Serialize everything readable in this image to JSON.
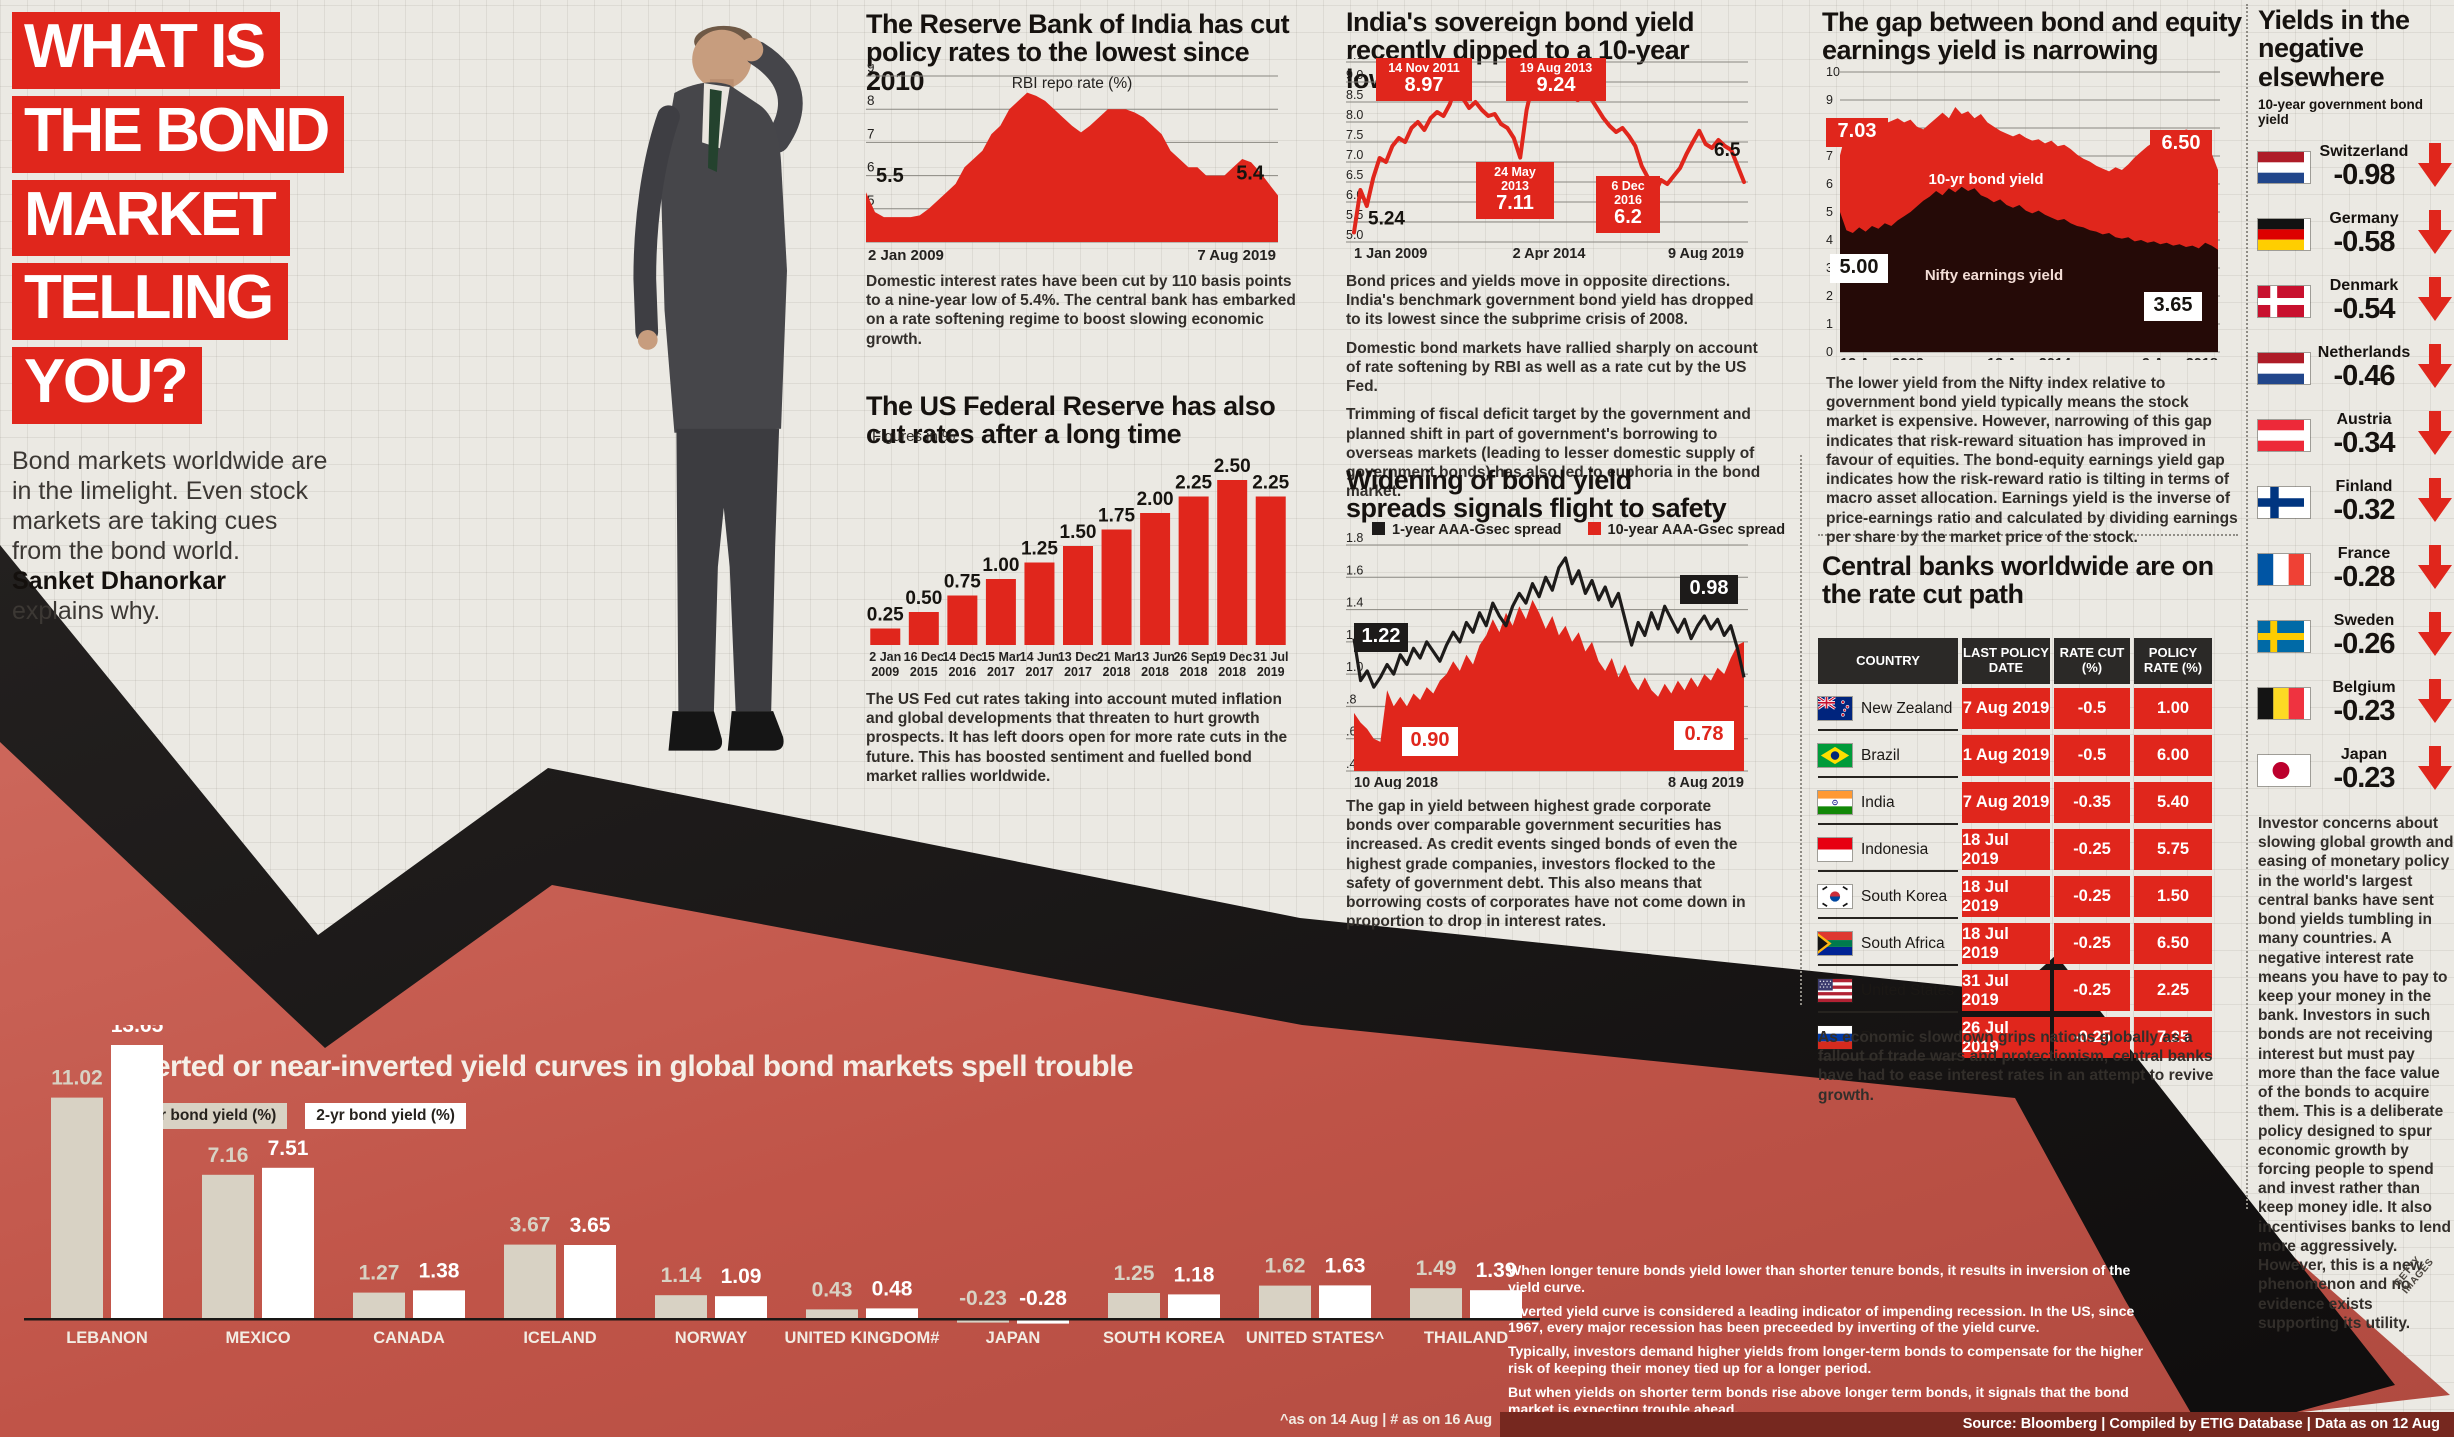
{
  "page": {
    "source_bar": "Source: Bloomberg   |   Compiled by ETIG Database   |   Data as on 12 Aug",
    "getty_credit": "GETTY IMAGES"
  },
  "masthead": {
    "title_lines": [
      "WHAT IS",
      "THE BOND",
      "MARKET",
      "TELLING",
      "YOU?"
    ],
    "intro": "Bond markets worldwide are in the limelight. Even stock markets are taking cues from the bond world.",
    "author": "Sanket Dhanorkar",
    "author_suffix": "explains why."
  },
  "sections": {
    "rbi": {
      "title": "The Reserve Bank of India has cut policy rates to the lowest since 2010",
      "caption": "Domestic interest rates have been cut by 110 basis points to a nine-year low of 5.4%. The central bank has embarked on a rate softening regime to boost slowing economic growth."
    },
    "usfed": {
      "title": "The US Federal Reserve has also cut rates after a long time",
      "unit_note": "Figures in %",
      "caption": "The US Fed cut rates taking into account muted inflation and global developments that threaten to hurt growth prospects. It has left doors open for more rate cuts in the future. This has boosted sentiment and fuelled bond market rallies worldwide."
    },
    "india_yield": {
      "title": "India's sovereign bond yield recently dipped to a 10-year low",
      "captions": [
        "Bond prices and yields move in opposite directions. India's benchmark government bond yield has dropped to its lowest since the subprime crisis of 2008.",
        "Domestic bond markets have rallied sharply on account of rate softening by RBI as well as a rate cut by the US Fed.",
        "Trimming of fiscal deficit target by the government and planned shift in part of government's borrowing to overseas markets (leading to lesser domestic supply of government bonds) has also led to euphoria in the bond market."
      ]
    },
    "spreads": {
      "title": "Widening of bond yield spreads signals flight to safety",
      "caption": "The gap in yield between highest grade corporate bonds over comparable government securities has increased. As credit events singed bonds of even the highest grade companies, investors flocked to the safety of government debt. This also means that borrowing costs of corporates have not come down in proportion to drop in interest rates."
    },
    "gap": {
      "title": "The gap between bond and equity earnings yield is narrowing",
      "caption": "The lower yield from the Nifty index relative to government bond yield typically means the stock market is expensive. However, narrowing of this gap indicates that risk-reward situation has improved in favour of equities. The bond-equity earnings yield gap indicates how the risk-reward ratio is tilting in terms of macro asset allocation. Earnings yield is the inverse of price-earnings ratio and calculated by dividing earnings per share by the market price of the stock."
    },
    "central_banks": {
      "title": "Central banks worldwide are on the rate cut path",
      "columns": [
        "COUNTRY",
        "LAST POLICY DATE",
        "RATE CUT (%)",
        "POLICY RATE (%)"
      ],
      "rows": [
        {
          "country": "New Zealand",
          "flag": "new_zealand",
          "date": "7 Aug 2019",
          "cut": "-0.5",
          "rate": "1.00"
        },
        {
          "country": "Brazil",
          "flag": "brazil",
          "date": "1 Aug 2019",
          "cut": "-0.5",
          "rate": "6.00"
        },
        {
          "country": "India",
          "flag": "india",
          "date": "7 Aug 2019",
          "cut": "-0.35",
          "rate": "5.40"
        },
        {
          "country": "Indonesia",
          "flag": "indonesia",
          "date": "18 Jul 2019",
          "cut": "-0.25",
          "rate": "5.75"
        },
        {
          "country": "South Korea",
          "flag": "south_korea",
          "date": "18 Jul 2019",
          "cut": "-0.25",
          "rate": "1.50"
        },
        {
          "country": "South Africa",
          "flag": "south_africa",
          "date": "18 Jul 2019",
          "cut": "-0.25",
          "rate": "6.50"
        },
        {
          "country": "United States",
          "flag": "united_states",
          "date": "31 Jul 2019",
          "cut": "-0.25",
          "rate": "2.25"
        },
        {
          "country": "Russia",
          "flag": "russia",
          "date": "26 Jul 2019",
          "cut": "-0.25",
          "rate": "7.25"
        }
      ],
      "caption": "As economic slowdown grips nations globally as a fallout of trade wars and protectionism, central banks have had to ease interest rates in an attempt to revive growth."
    },
    "negative_yields": {
      "title": "Yields in the negative elsewhere",
      "subtitle": "10-year government bond yield",
      "items": [
        {
          "country": "Switzerland",
          "value": "-0.98",
          "flag": "netherlands"
        },
        {
          "country": "Germany",
          "value": "-0.58",
          "flag": "germany"
        },
        {
          "country": "Denmark",
          "value": "-0.54",
          "flag": "denmark"
        },
        {
          "country": "Netherlands",
          "value": "-0.46",
          "flag": "netherlands"
        },
        {
          "country": "Austria",
          "value": "-0.34",
          "flag": "austria"
        },
        {
          "country": "Finland",
          "value": "-0.32",
          "flag": "finland"
        },
        {
          "country": "France",
          "value": "-0.28",
          "flag": "france"
        },
        {
          "country": "Sweden",
          "value": "-0.26",
          "flag": "sweden"
        },
        {
          "country": "Belgium",
          "value": "-0.23",
          "flag": "belgium"
        },
        {
          "country": "Japan",
          "value": "-0.23",
          "flag": "japan"
        }
      ],
      "caption": "Investor concerns about slowing global growth and easing of monetary policy in the world's largest central banks have sent bond yields tumbling in many countries. A negative interest rate means you have to pay to keep your money in the bank. Investors in such bonds are not receiving interest but must pay more than the face value of the bonds to acquire them. This is a deliberate policy designed to spur economic growth by forcing people to spend and invest rather than keep money idle. It also incentivises banks to lend more aggressively. However, this is a new phenomenon and no evidence exists supporting its utility."
    },
    "inverted": {
      "title": "Inverted or near-inverted yield curves in global bond markets spell trouble",
      "notes": [
        "When longer tenure bonds yield lower than shorter tenure bonds, it results in inversion of the yield curve.",
        "Inverted yield curve is considered a leading indicator of impending recession. In the US, since 1967, every major recession has been preceeded by inverting of the yield curve.",
        "Typically, investors demand higher yields from longer-term bonds to compensate for the higher risk of keeping their money tied up for a longer period.",
        "But when yields on shorter term bonds rise above longer term bonds, it signals that the bond market is expecting trouble ahead."
      ],
      "footnote": "^as on 14 Aug   |   # as on 16 Aug"
    }
  },
  "chart_data": [
    {
      "id": "rbi_repo",
      "type": "area",
      "title": "RBI repo rate (%)",
      "color": "#e0261c",
      "ylim": [
        4,
        9
      ],
      "yticks": [
        9,
        8,
        7,
        6,
        5,
        4
      ],
      "x_labels": [
        "2 Jan 2009",
        "7 Aug 2019"
      ],
      "start_label": "5.5",
      "end_label": "5.4",
      "values": [
        5.5,
        4.9,
        4.75,
        4.75,
        4.75,
        4.75,
        4.8,
        5.0,
        5.25,
        5.5,
        5.75,
        6.25,
        6.5,
        6.75,
        7.25,
        7.5,
        8.0,
        8.25,
        8.5,
        8.4,
        8.25,
        8.0,
        7.75,
        7.5,
        7.3,
        7.5,
        7.75,
        8.0,
        8.0,
        8.0,
        7.9,
        7.75,
        7.5,
        7.25,
        6.75,
        6.5,
        6.25,
        6.25,
        6.0,
        6.0,
        6.0,
        6.25,
        6.5,
        6.4,
        6.1,
        5.75,
        5.4
      ]
    },
    {
      "id": "us_fed",
      "type": "bar",
      "title": "Figures in %",
      "color": "#e0261c",
      "categories": [
        "2 Jan 2009",
        "16 Dec 2015",
        "14 Dec 2016",
        "15 Mar 2017",
        "14 Jun 2017",
        "13 Dec 2017",
        "21 Mar 2018",
        "13 Jun 2018",
        "26 Sep 2018",
        "19 Dec 2018",
        "31 Jul 2019"
      ],
      "values": [
        0.25,
        0.5,
        0.75,
        1.0,
        1.25,
        1.5,
        1.75,
        2.0,
        2.25,
        2.5,
        2.25
      ]
    },
    {
      "id": "india_10y",
      "type": "line",
      "color": "#e0261c",
      "ylim": [
        5.0,
        9.5
      ],
      "yticks": [
        9.5,
        9.0,
        8.5,
        8.0,
        7.5,
        7.0,
        6.5,
        6.0,
        5.5,
        5.0
      ],
      "x_labels": [
        "1 Jan 2009",
        "2 Apr 2014",
        "9 Aug 2019"
      ],
      "start_label": "5.24",
      "end_label": "6.5",
      "callouts": [
        {
          "date": "14 Nov 2011",
          "value": "8.97"
        },
        {
          "date": "19 Aug 2013",
          "value": "9.24"
        },
        {
          "date": "24 May 2013",
          "value": "7.11"
        },
        {
          "date": "6 Dec 2016",
          "value": "6.2"
        }
      ],
      "values": [
        5.24,
        6.3,
        5.9,
        6.6,
        7.1,
        7.0,
        7.4,
        7.6,
        7.5,
        7.85,
        8.0,
        7.8,
        8.1,
        8.25,
        8.15,
        8.45,
        8.97,
        8.6,
        8.35,
        8.5,
        8.3,
        8.15,
        8.2,
        7.95,
        7.85,
        7.6,
        7.11,
        8.3,
        9.0,
        9.24,
        8.7,
        8.95,
        8.85,
        8.9,
        8.65,
        8.55,
        8.8,
        8.6,
        8.35,
        8.1,
        7.9,
        7.75,
        7.85,
        7.65,
        7.4,
        6.9,
        6.6,
        6.2,
        6.55,
        6.45,
        6.65,
        6.85,
        7.2,
        7.5,
        7.78,
        7.45,
        7.35,
        7.55,
        7.4,
        7.3,
        6.9,
        6.5
      ]
    },
    {
      "id": "spreads",
      "type": "line",
      "legend": [
        "1-year AAA-Gsec spread",
        "10-year AAA-Gsec spread"
      ],
      "colors": [
        "#1d1b1a",
        "#e0261c"
      ],
      "ylim": [
        0.4,
        1.8
      ],
      "yticks": [
        1.8,
        1.6,
        1.4,
        1.2,
        1.0,
        0.8,
        0.6,
        0.4
      ],
      "x_labels": [
        "10 Aug 2018",
        "8 Aug 2019"
      ],
      "callouts": [
        "1.22",
        "0.98",
        "0.90",
        "0.78"
      ],
      "series": [
        {
          "name": "1-year AAA-Gsec spread",
          "values": [
            1.22,
            0.96,
            1.02,
            0.92,
            0.98,
            1.06,
            1.0,
            1.12,
            1.06,
            1.16,
            1.1,
            1.2,
            1.14,
            1.08,
            1.18,
            1.26,
            1.2,
            1.32,
            1.26,
            1.38,
            1.3,
            1.44,
            1.36,
            1.3,
            1.42,
            1.5,
            1.44,
            1.56,
            1.48,
            1.6,
            1.52,
            1.66,
            1.72,
            1.56,
            1.64,
            1.5,
            1.58,
            1.46,
            1.54,
            1.42,
            1.5,
            1.34,
            1.18,
            1.32,
            1.24,
            1.38,
            1.28,
            1.42,
            1.34,
            1.26,
            1.34,
            1.22,
            1.3,
            1.36,
            1.28,
            1.34,
            1.24,
            1.3,
            1.16,
            0.98
          ]
        },
        {
          "name": "10-year AAA-Gsec spread",
          "values": [
            0.76,
            0.7,
            0.66,
            0.6,
            0.58,
            0.9,
            0.8,
            0.86,
            0.8,
            0.88,
            0.84,
            0.92,
            0.88,
            0.96,
            1.0,
            1.08,
            1.02,
            1.12,
            1.06,
            1.18,
            1.24,
            1.34,
            1.26,
            1.38,
            1.3,
            1.42,
            1.34,
            1.46,
            1.38,
            1.28,
            1.36,
            1.24,
            1.3,
            1.2,
            1.26,
            1.14,
            1.2,
            1.08,
            1.02,
            1.1,
            0.98,
            1.06,
            0.96,
            0.9,
            0.98,
            0.9,
            0.86,
            0.94,
            0.88,
            0.96,
            0.9,
            0.98,
            0.92,
            1.0,
            0.96,
            1.04,
            1.0,
            1.1,
            1.18,
            1.2
          ]
        }
      ]
    },
    {
      "id": "gap",
      "type": "area",
      "ylim": [
        0,
        10
      ],
      "yticks": [
        10,
        9,
        8,
        7,
        6,
        5,
        4,
        3,
        2,
        1,
        0
      ],
      "x_labels": [
        "12 Aug 2009",
        "12 Aug 2014",
        "9 Aug 2018"
      ],
      "callouts": [
        "7.03",
        "6.50",
        "5.00",
        "3.65"
      ],
      "series": [
        {
          "name": "10-yr bond yield",
          "color": "#e0261c",
          "values": [
            7.03,
            7.9,
            8.05,
            7.85,
            8.0,
            8.2,
            8.35,
            8.15,
            8.25,
            8.35,
            8.2,
            8.3,
            8.05,
            7.95,
            8.15,
            8.35,
            8.55,
            8.35,
            8.75,
            8.5,
            8.6,
            8.35,
            8.5,
            8.2,
            8.05,
            7.9,
            7.8,
            7.7,
            7.8,
            7.65,
            7.55,
            7.6,
            7.45,
            7.55,
            7.35,
            7.4,
            7.25,
            7.05,
            6.9,
            6.8,
            6.65,
            6.55,
            6.45,
            6.6,
            6.5,
            6.7,
            6.95,
            7.15,
            7.35,
            7.5,
            7.6,
            7.7,
            7.85,
            7.75,
            7.95,
            7.85,
            7.7,
            7.45,
            7.1,
            6.5
          ]
        },
        {
          "name": "Nifty earnings yield",
          "color": "#250a07",
          "values": [
            5.0,
            4.35,
            4.25,
            4.45,
            4.3,
            4.5,
            4.4,
            4.6,
            4.5,
            4.7,
            4.85,
            5.0,
            5.2,
            5.4,
            5.55,
            5.75,
            5.6,
            5.85,
            5.7,
            5.9,
            5.75,
            5.85,
            5.6,
            5.5,
            5.35,
            5.45,
            5.25,
            5.15,
            5.25,
            5.05,
            4.95,
            5.05,
            4.9,
            4.8,
            4.7,
            4.75,
            4.6,
            4.5,
            4.45,
            4.35,
            4.3,
            4.2,
            4.25,
            4.1,
            4.05,
            4.1,
            3.95,
            4.0,
            3.9,
            3.95,
            3.85,
            3.9,
            3.8,
            3.85,
            3.75,
            3.8,
            3.7,
            3.9,
            3.8,
            3.65
          ]
        }
      ]
    },
    {
      "id": "inverted_curves",
      "type": "bar",
      "legend": [
        "10-yr bond yield (%)",
        "2-yr bond yield (%)"
      ],
      "colors": [
        "#d8d2c4",
        "#ffffff"
      ],
      "categories": [
        "LEBANON",
        "MEXICO",
        "CANADA",
        "ICELAND",
        "NORWAY",
        "UNITED KINGDOM#",
        "JAPAN",
        "SOUTH KOREA",
        "UNITED STATES^",
        "THAILAND"
      ],
      "series": [
        {
          "name": "10-yr bond yield (%)",
          "values": [
            11.02,
            7.16,
            1.27,
            3.67,
            1.14,
            0.43,
            -0.23,
            1.25,
            1.62,
            1.49
          ]
        },
        {
          "name": "2-yr bond yield (%)",
          "values": [
            13.65,
            7.51,
            1.38,
            3.65,
            1.09,
            0.48,
            -0.28,
            1.18,
            1.63,
            1.39
          ]
        }
      ]
    }
  ]
}
